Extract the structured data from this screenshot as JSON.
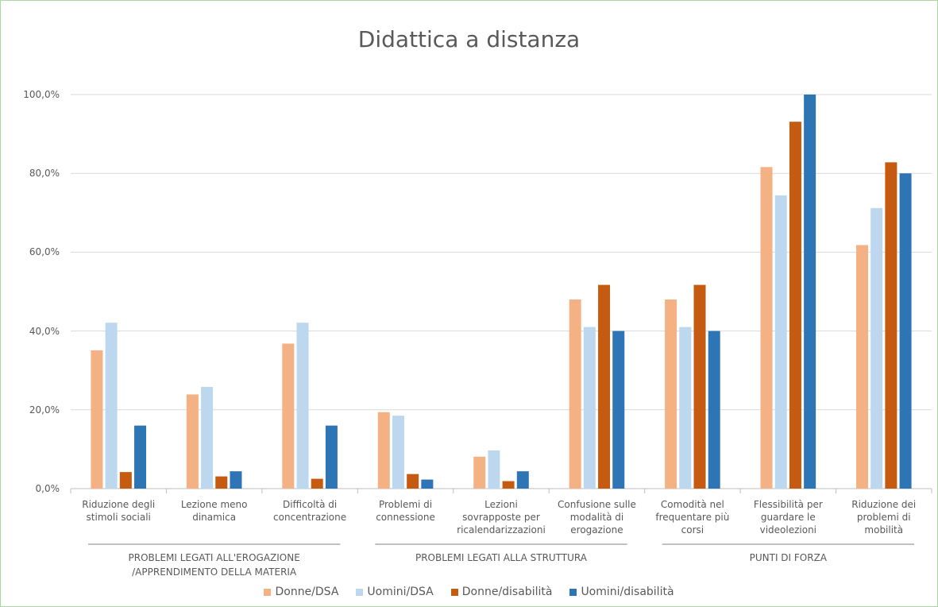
{
  "chart_data": {
    "type": "bar",
    "title": "Didattica a distanza",
    "categories": [
      "Riduzione degli\nstimoli sociali",
      "Lezione meno\ndinamica",
      "Difficoltà di\nconcentrazione",
      "Problemi di\nconnessione",
      "Lezioni\nsovrapposte per\nricalendarizzazioni",
      "Confusione sulle\nmodalità di\nerogazione",
      "Comodità nel\nfrequentare più\ncorsi",
      "Flessibilità per\nguardare le\nvideolezioni",
      "Riduzione dei\nproblemi di\nmobilità"
    ],
    "groups": [
      {
        "label": "PROBLEMI LEGATI ALL'EROGAZIONE\n/APPRENDIMENTO DELLA MATERIA",
        "categories": [
          0,
          2
        ]
      },
      {
        "label": "PROBLEMI LEGATI ALLA STRUTTURA",
        "categories": [
          3,
          5
        ]
      },
      {
        "label": "PUNTI DI FORZA",
        "categories": [
          6,
          8
        ]
      }
    ],
    "series": [
      {
        "name": "Donne/DSA",
        "color": "#f4b183",
        "values": [
          35.1,
          23.9,
          36.8,
          19.4,
          8.1,
          48.0,
          48.0,
          81.6,
          61.8
        ]
      },
      {
        "name": "Uomini/DSA",
        "color": "#bdd7ee",
        "values": [
          42.1,
          25.8,
          42.1,
          18.5,
          9.7,
          41.0,
          41.0,
          74.4,
          71.2
        ]
      },
      {
        "name": "Donne/disabilità",
        "color": "#c55a11",
        "values": [
          4.2,
          3.1,
          2.5,
          3.7,
          1.9,
          51.7,
          51.7,
          93.1,
          82.8
        ]
      },
      {
        "name": "Uomini/disabilità",
        "color": "#2e75b6",
        "values": [
          16.0,
          4.4,
          16.0,
          2.3,
          4.4,
          40.0,
          40.0,
          100,
          80.0
        ]
      }
    ],
    "ylim": [
      0,
      100
    ],
    "yticks": [
      {
        "value": 0,
        "label": "0,0%"
      },
      {
        "value": 20,
        "label": "20,0%"
      },
      {
        "value": 40,
        "label": "40,0%"
      },
      {
        "value": 60,
        "label": "60,0%"
      },
      {
        "value": 80,
        "label": "80,0%"
      },
      {
        "value": 100,
        "label": "100,0%"
      }
    ],
    "grid": true,
    "legend": "bottom"
  }
}
